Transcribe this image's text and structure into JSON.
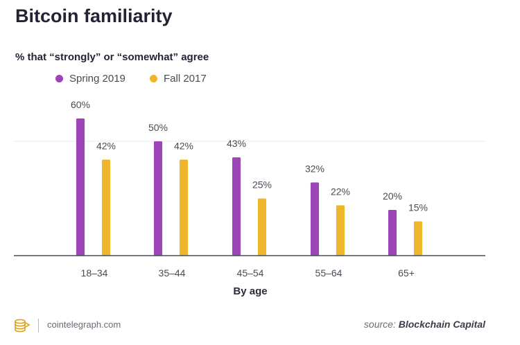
{
  "chart_data": {
    "type": "bar",
    "title": "Bitcoin familiarity",
    "subtitle": "% that “strongly” or “somewhat” agree",
    "categories": [
      "18–34",
      "35–44",
      "45–54",
      "55–64",
      "65+"
    ],
    "series": [
      {
        "name": "Spring 2019",
        "color": "#9c44b8",
        "values": [
          60,
          50,
          43,
          32,
          20
        ],
        "labels": [
          "60%",
          "50%",
          "43%",
          "32%",
          "20%"
        ]
      },
      {
        "name": "Fall 2017",
        "color": "#f0b62b",
        "values": [
          42,
          42,
          25,
          22,
          15
        ],
        "labels": [
          "42%",
          "42%",
          "25%",
          "22%",
          "15%"
        ]
      }
    ],
    "xlabel": "By age",
    "ylabel": "",
    "ylim": [
      0,
      100
    ],
    "grid": true
  },
  "footer": {
    "site": "cointelegraph.com",
    "source_prefix": "source:",
    "source_org": "Blockchain Capital"
  },
  "icons": {
    "logo": "cointelegraph-logo-icon"
  }
}
